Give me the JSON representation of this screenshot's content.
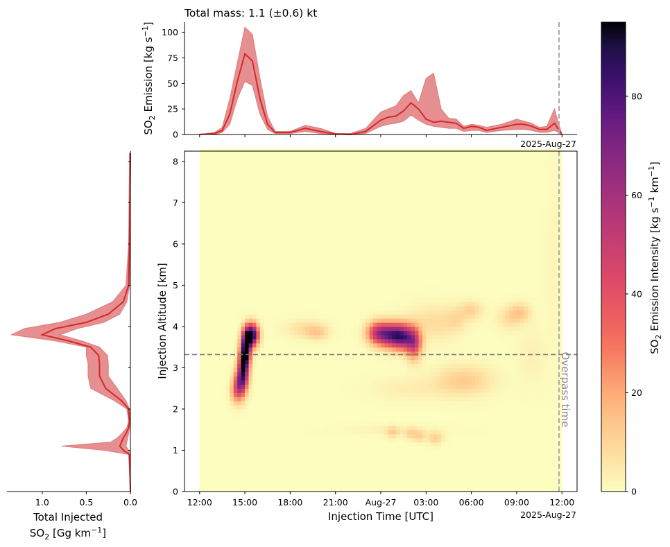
{
  "chart_data": [
    {
      "type": "area",
      "panel": "top-emission-timeseries",
      "title": "Total mass: 1.1 (±0.6) kt",
      "ylabel": "SO<sub>2</sub> Emission [kg s<sup>-1</sup>]",
      "ylabel_parts": {
        "pre": "SO",
        "sub": "2",
        "mid": " Emission [kg s",
        "sup": "−1",
        "post": "]"
      },
      "x_units": "hours since 2025-08-26 12:00 UTC",
      "xlim": [
        -1,
        25
      ],
      "ylim": [
        0,
        110
      ],
      "yticks": [
        0,
        25,
        50,
        75,
        100
      ],
      "date_label": "2025-Aug-27",
      "overpass_x": 24,
      "x": [
        0,
        1,
        1.5,
        2,
        2.5,
        3,
        3.5,
        4,
        4.5,
        5,
        6,
        7,
        8,
        9,
        10,
        11,
        12,
        12.5,
        13,
        13.5,
        14,
        14.5,
        15,
        15.5,
        16,
        16.5,
        17,
        17.5,
        18,
        18.5,
        19,
        20,
        21,
        21.5,
        22,
        22.5,
        23,
        23.5,
        24
      ],
      "mean": [
        0,
        1,
        4,
        20,
        52,
        79,
        72,
        35,
        10,
        2,
        2,
        6,
        3,
        0.5,
        0,
        3,
        14,
        17,
        18,
        23,
        31,
        25,
        15,
        12,
        13,
        12,
        11,
        6,
        8,
        7,
        4,
        7,
        10,
        10,
        8,
        5,
        5,
        11,
        0
      ],
      "upper": [
        0,
        2,
        7,
        35,
        70,
        105,
        98,
        55,
        18,
        3,
        3,
        9,
        6,
        1,
        1,
        6,
        22,
        25,
        28,
        38,
        43,
        31,
        55,
        60,
        25,
        16,
        15,
        8,
        10,
        9,
        7,
        10,
        15,
        13,
        11,
        7,
        8,
        25,
        0
      ],
      "lower": [
        0,
        0,
        2,
        10,
        35,
        52,
        48,
        20,
        5,
        1,
        1,
        3,
        1,
        0,
        0,
        1,
        8,
        10,
        11,
        13,
        19,
        14,
        10,
        8,
        7,
        6,
        6,
        3,
        4,
        4,
        2,
        4,
        5,
        5,
        4,
        2,
        2,
        4,
        0
      ]
    },
    {
      "type": "area",
      "panel": "left-vertical-profile",
      "xlabel_line1": "Total Injected",
      "xlabel_parts": {
        "pre": "SO",
        "sub": "2",
        "mid": " [Gg km",
        "sup": "−1",
        "post": "]"
      },
      "xticks": [
        1.0,
        0.5,
        0.0
      ],
      "xtick_labels": [
        "1.0",
        "0.5",
        "0.0"
      ],
      "xlim": [
        1.4,
        0
      ],
      "ylim": [
        0,
        8.25
      ],
      "altitude": [
        0,
        0.9,
        1.0,
        1.1,
        1.2,
        1.3,
        1.4,
        1.55,
        1.7,
        2.0,
        2.2,
        2.5,
        2.8,
        3.1,
        3.3,
        3.5,
        3.65,
        3.8,
        3.95,
        4.1,
        4.3,
        4.6,
        5.0,
        6.0,
        8.2
      ],
      "mean": [
        0,
        0.01,
        0.08,
        0.12,
        0.1,
        0.08,
        0.05,
        0.02,
        0.01,
        0.02,
        0.1,
        0.28,
        0.35,
        0.35,
        0.36,
        0.45,
        0.7,
        1.0,
        0.85,
        0.5,
        0.25,
        0.08,
        0.02,
        0.01,
        0.0
      ],
      "upper": [
        0,
        0.02,
        0.3,
        0.78,
        0.22,
        0.15,
        0.1,
        0.04,
        0.02,
        0.04,
        0.18,
        0.45,
        0.48,
        0.48,
        0.5,
        0.5,
        0.85,
        1.35,
        1.2,
        0.8,
        0.5,
        0.2,
        0.05,
        0.02,
        0.01
      ],
      "lower": [
        0,
        0.0,
        0.02,
        0.05,
        0.04,
        0.03,
        0.02,
        0.01,
        0.0,
        0.01,
        0.05,
        0.15,
        0.25,
        0.25,
        0.26,
        0.35,
        0.55,
        0.8,
        0.6,
        0.3,
        0.12,
        0.04,
        0.01,
        0.0,
        0.0
      ]
    },
    {
      "type": "heatmap",
      "panel": "main-altitude-time",
      "xlabel": "Injection Time [UTC]",
      "ylabel": "Injection Altitude [km]",
      "x_units": "hours since 2025-08-26 12:00 UTC",
      "xlim": [
        -1,
        25
      ],
      "ylim": [
        0,
        8.25
      ],
      "xticks": [
        0,
        3,
        6,
        9,
        12,
        15,
        18,
        21,
        24
      ],
      "xtick_labels": [
        "12:00",
        "15:00",
        "18:00",
        "21:00",
        "Aug-27",
        "03:00",
        "06:00",
        "09:00",
        "12:00"
      ],
      "yticks": [
        0,
        1,
        2,
        3,
        4,
        5,
        6,
        7,
        8
      ],
      "date_label": "2025-Aug-27",
      "data_extent_x": [
        0,
        24
      ],
      "overpass_x": 24,
      "overpass_label": "Overpass time",
      "reference_altitude": 3.32,
      "blobs": [
        {
          "t": 2.4,
          "z": 2.45,
          "st": 0.25,
          "sz": 0.2,
          "v": 25
        },
        {
          "t": 2.7,
          "z": 2.65,
          "st": 0.25,
          "sz": 0.25,
          "v": 45
        },
        {
          "t": 2.9,
          "z": 2.9,
          "st": 0.25,
          "sz": 0.3,
          "v": 50
        },
        {
          "t": 3.0,
          "z": 3.25,
          "st": 0.22,
          "sz": 0.25,
          "v": 65
        },
        {
          "t": 3.1,
          "z": 3.6,
          "st": 0.22,
          "sz": 0.22,
          "v": 75
        },
        {
          "t": 3.45,
          "z": 3.8,
          "st": 0.3,
          "sz": 0.18,
          "v": 95
        },
        {
          "t": 7.0,
          "z": 3.95,
          "st": 0.9,
          "sz": 0.15,
          "v": 8
        },
        {
          "t": 7.8,
          "z": 3.85,
          "st": 0.5,
          "sz": 0.12,
          "v": 10
        },
        {
          "t": 11.8,
          "z": 3.85,
          "st": 0.5,
          "sz": 0.18,
          "v": 45
        },
        {
          "t": 12.7,
          "z": 3.8,
          "st": 0.6,
          "sz": 0.2,
          "v": 60
        },
        {
          "t": 13.5,
          "z": 3.75,
          "st": 0.5,
          "sz": 0.2,
          "v": 55
        },
        {
          "t": 14.2,
          "z": 3.6,
          "st": 0.35,
          "sz": 0.25,
          "v": 45
        },
        {
          "t": 15.5,
          "z": 4.1,
          "st": 1.2,
          "sz": 0.3,
          "v": 8
        },
        {
          "t": 18.0,
          "z": 4.4,
          "st": 0.5,
          "sz": 0.15,
          "v": 10
        },
        {
          "t": 17.0,
          "z": 4.2,
          "st": 0.5,
          "sz": 0.2,
          "v": 6
        },
        {
          "t": 21.2,
          "z": 4.35,
          "st": 0.5,
          "sz": 0.15,
          "v": 12
        },
        {
          "t": 20.5,
          "z": 4.2,
          "st": 0.6,
          "sz": 0.2,
          "v": 7
        },
        {
          "t": 17.5,
          "z": 2.7,
          "st": 1.3,
          "sz": 0.25,
          "v": 12
        },
        {
          "t": 14.0,
          "z": 2.5,
          "st": 1.8,
          "sz": 0.2,
          "v": 4
        },
        {
          "t": 12.8,
          "z": 1.45,
          "st": 0.3,
          "sz": 0.1,
          "v": 10
        },
        {
          "t": 14.0,
          "z": 1.4,
          "st": 0.3,
          "sz": 0.1,
          "v": 10
        },
        {
          "t": 14.6,
          "z": 1.35,
          "st": 0.25,
          "sz": 0.1,
          "v": 10
        },
        {
          "t": 15.6,
          "z": 1.3,
          "st": 0.35,
          "sz": 0.1,
          "v": 12
        },
        {
          "t": 13.0,
          "z": 1.5,
          "st": 2.5,
          "sz": 0.08,
          "v": 3
        },
        {
          "t": 22.0,
          "z": 3.3,
          "st": 0.6,
          "sz": 0.5,
          "v": 3
        },
        {
          "t": 23.5,
          "z": 5.5,
          "st": 0.4,
          "sz": 1.5,
          "v": 2
        }
      ]
    },
    {
      "type": "colorbar",
      "panel": "colorbar",
      "label_parts": {
        "pre": "SO",
        "sub": "2",
        "mid": " Emission Intensity [kg s",
        "sup": "−1",
        "mid2": " km",
        "sup2": "−1",
        "post": "]"
      },
      "vmin": 0,
      "vmax": 95,
      "ticks": [
        0,
        20,
        40,
        60,
        80
      ],
      "colormap": "magma_r"
    }
  ],
  "colors": {
    "line": "#d62728",
    "fill": "#e07b7c",
    "fill_opacity": 0.85,
    "reference_line": "#777777",
    "overpass_line": "#aaaaaa",
    "overpass_text": "#888888"
  }
}
